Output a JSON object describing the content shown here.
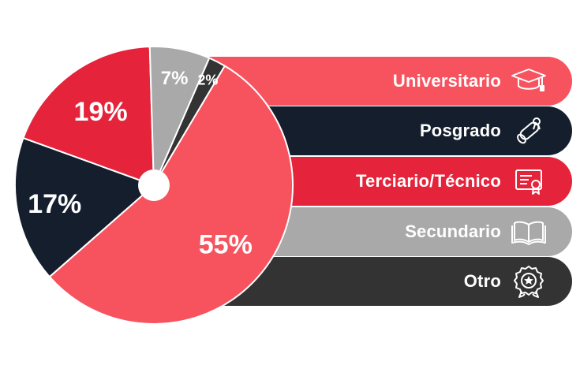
{
  "chart_data": {
    "type": "pie",
    "categories": [
      "Universitario",
      "Posgrado",
      "Terciario/Técnico",
      "Secundario",
      "Otro"
    ],
    "values": [
      55,
      17,
      19,
      7,
      2
    ],
    "value_labels": [
      "55%",
      "17%",
      "19%",
      "7%",
      "2%"
    ],
    "colors": [
      "#f7535f",
      "#141e2d",
      "#e5233a",
      "#a9a9a9",
      "#333333"
    ],
    "legend_placement": "right",
    "title": "",
    "xlabel": "",
    "ylabel": ""
  },
  "legend": {
    "items": [
      {
        "label": "Universitario",
        "icon": "graduation-cap-icon",
        "color": "#f7535f"
      },
      {
        "label": "Posgrado",
        "icon": "diploma-scroll-icon",
        "color": "#141e2d"
      },
      {
        "label": "Terciario/Técnico",
        "icon": "certificate-icon",
        "color": "#e5233a"
      },
      {
        "label": "Secundario",
        "icon": "open-book-icon",
        "color": "#a9a9a9"
      },
      {
        "label": "Otro",
        "icon": "award-badge-icon",
        "color": "#333333"
      }
    ]
  }
}
